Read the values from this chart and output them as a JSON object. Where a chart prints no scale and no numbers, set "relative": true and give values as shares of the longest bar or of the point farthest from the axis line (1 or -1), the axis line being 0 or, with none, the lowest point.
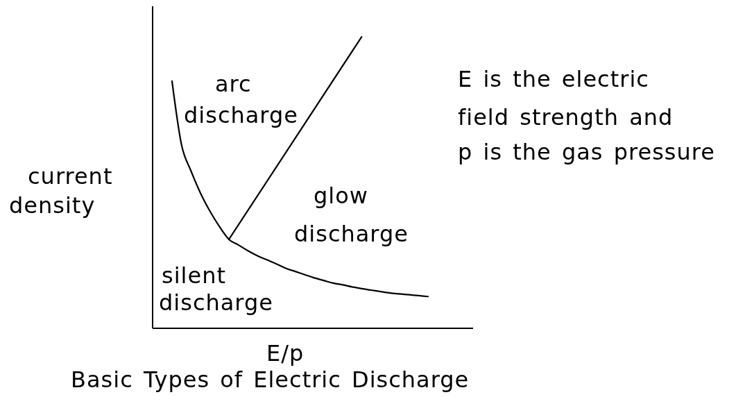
{
  "chart_data": {
    "type": "line",
    "title": "Basic Types of Electric Discharge",
    "xlabel": "E/p",
    "ylabel": "current\ndensity",
    "relative": true,
    "marker": "none",
    "annotations": [
      "arc\ndischarge",
      "glow\ndischarge",
      "silent\ndischarge",
      "E is the electric\nfield strength and\np is the gas pressure"
    ],
    "categories": [
      null,
      null,
      null,
      null,
      null,
      null,
      null,
      null,
      null,
      null,
      null,
      null,
      null,
      null,
      null,
      null,
      null,
      null,
      null,
      null,
      null,
      null,
      null,
      null,
      null,
      null,
      null,
      null
    ],
    "series": [
      {
        "color": "#000000",
        "values": [
          0.848,
          0.63,
          0.54,
          0.464,
          0.402,
          0.349,
          0.305,
          0.286,
          0.266,
          0.249,
          0.235,
          0.221,
          0.206,
          0.195,
          0.184,
          0.173,
          0.164,
          0.155,
          0.149,
          0.142,
          0.136,
          0.131,
          0.126,
          0.121,
          0.118,
          0.115,
          0.112,
          0.109
        ]
      },
      {
        "color": "#000000",
        "values": [
          null,
          null,
          null,
          null,
          null,
          null,
          0.305,
          null,
          null,
          null,
          null,
          null,
          null,
          null,
          null,
          null,
          null,
          null,
          null,
          null,
          1.0,
          null,
          null,
          null,
          null,
          null,
          null,
          null
        ]
      }
    ]
  }
}
